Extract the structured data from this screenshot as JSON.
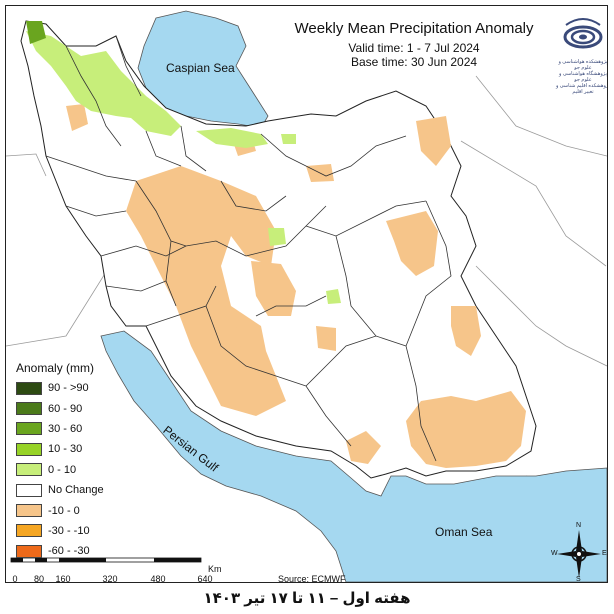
{
  "header": {
    "title": "Weekly Mean Precipitation Anomaly",
    "valid_time": "Valid time: 1 - 7 Jul 2024",
    "base_time": "Base time: 30 Jun 2024"
  },
  "logo": {
    "text_line1": "پژوهشکده هواشناسی و علوم جو",
    "text_line2": "پژوهشگاه هواشناسی و علوم جو",
    "text_line3": "پژوهشکده اقلیم شناسی و تغییر اقلیم"
  },
  "map_labels": {
    "caspian": "Caspian Sea",
    "gulf": "Persian Gulf",
    "oman": "Oman Sea"
  },
  "legend": {
    "title": "Anomaly (mm)",
    "items": [
      {
        "label": "90 - >90",
        "color": "#2d4a12"
      },
      {
        "label": "60 - 90",
        "color": "#4b7a1a"
      },
      {
        "label": "30 - 60",
        "color": "#6aa51f"
      },
      {
        "label": "10 - 30",
        "color": "#97d327"
      },
      {
        "label": "0 - 10",
        "color": "#c7ee7a"
      },
      {
        "label": "No Change",
        "color": "#ffffff"
      },
      {
        "label": "-10 - 0",
        "color": "#f6c58a"
      },
      {
        "label": "-30 - -10",
        "color": "#f5a623"
      },
      {
        "label": "-60 - -30",
        "color": "#ee6a1a"
      }
    ]
  },
  "scale": {
    "unit": "Km",
    "ticks": [
      "0",
      "80",
      "160",
      "320",
      "480",
      "640"
    ]
  },
  "source": "Source: ECMWF",
  "footer": "هفته اول – ۱۱ تا ۱۷ تیر ۱۴۰۳",
  "compass": {
    "n": "N",
    "s": "S",
    "e": "E",
    "w": "W"
  },
  "colors": {
    "water": "#a5d8f0",
    "land_outside": "#ffffff",
    "boundary": "#333333"
  }
}
